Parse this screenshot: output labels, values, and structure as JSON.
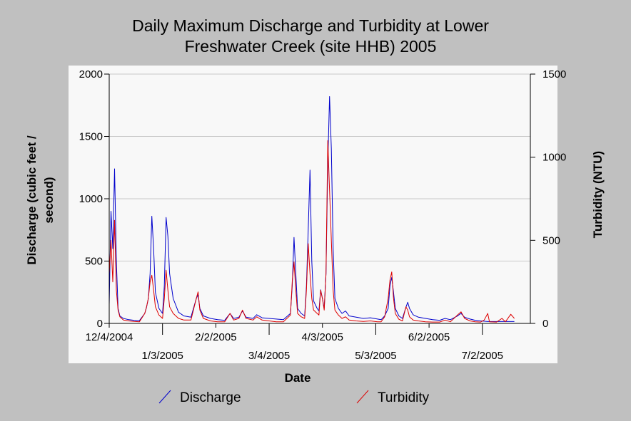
{
  "chart_data": {
    "type": "line",
    "title": [
      "Daily Maximum Discharge and Turbidity at Lower",
      "Freshwater Creek (site HHB) 2005"
    ],
    "xlabel": "Date",
    "ylabel_left": [
      "Discharge (cubic feet /",
      "second)"
    ],
    "ylabel_right": "Turbidity (NTU)",
    "x_range": [
      "2004-12-04",
      "2005-07-29"
    ],
    "x_ticks": [
      {
        "date": "2004-12-04",
        "label": "12/4/2004",
        "row": 1
      },
      {
        "date": "2005-01-03",
        "label": "1/3/2005",
        "row": 2
      },
      {
        "date": "2005-02-02",
        "label": "2/2/2005",
        "row": 1
      },
      {
        "date": "2005-03-04",
        "label": "3/4/2005",
        "row": 2
      },
      {
        "date": "2005-04-03",
        "label": "4/3/2005",
        "row": 1
      },
      {
        "date": "2005-05-03",
        "label": "5/3/2005",
        "row": 2
      },
      {
        "date": "2005-06-02",
        "label": "6/2/2005",
        "row": 1
      },
      {
        "date": "2005-07-02",
        "label": "7/2/2005",
        "row": 2
      }
    ],
    "ylim_left": [
      0,
      2000
    ],
    "yticks_left": [
      "0",
      "500",
      "1000",
      "1500",
      "2000"
    ],
    "ylim_right": [
      0,
      1500
    ],
    "yticks_right": [
      "0",
      "500",
      "1000",
      "1500"
    ],
    "grid": "horizontal",
    "legend_position": "bottom",
    "series": [
      {
        "name": "Discharge",
        "axis": "left",
        "color": "#0000cc",
        "points": [
          [
            "2004-12-04",
            150
          ],
          [
            "2004-12-05",
            900
          ],
          [
            "2004-12-06",
            600
          ],
          [
            "2004-12-07",
            1240
          ],
          [
            "2004-12-08",
            500
          ],
          [
            "2004-12-09",
            120
          ],
          [
            "2004-12-10",
            60
          ],
          [
            "2004-12-12",
            40
          ],
          [
            "2004-12-15",
            30
          ],
          [
            "2004-12-18",
            25
          ],
          [
            "2004-12-21",
            22
          ],
          [
            "2004-12-24",
            80
          ],
          [
            "2004-12-25",
            130
          ],
          [
            "2004-12-26",
            200
          ],
          [
            "2004-12-27",
            400
          ],
          [
            "2004-12-28",
            860
          ],
          [
            "2004-12-29",
            600
          ],
          [
            "2004-12-30",
            250
          ],
          [
            "2005-01-01",
            120
          ],
          [
            "2005-01-03",
            80
          ],
          [
            "2005-01-04",
            300
          ],
          [
            "2005-01-05",
            850
          ],
          [
            "2005-01-06",
            700
          ],
          [
            "2005-01-07",
            400
          ],
          [
            "2005-01-09",
            200
          ],
          [
            "2005-01-12",
            90
          ],
          [
            "2005-01-15",
            60
          ],
          [
            "2005-01-19",
            50
          ],
          [
            "2005-01-22",
            200
          ],
          [
            "2005-01-23",
            230
          ],
          [
            "2005-01-24",
            120
          ],
          [
            "2005-01-26",
            60
          ],
          [
            "2005-01-30",
            40
          ],
          [
            "2005-02-03",
            30
          ],
          [
            "2005-02-07",
            25
          ],
          [
            "2005-02-10",
            80
          ],
          [
            "2005-02-12",
            40
          ],
          [
            "2005-02-15",
            50
          ],
          [
            "2005-02-17",
            100
          ],
          [
            "2005-02-19",
            50
          ],
          [
            "2005-02-23",
            40
          ],
          [
            "2005-02-25",
            70
          ],
          [
            "2005-02-28",
            45
          ],
          [
            "2005-03-04",
            40
          ],
          [
            "2005-03-08",
            35
          ],
          [
            "2005-03-12",
            30
          ],
          [
            "2005-03-16",
            80
          ],
          [
            "2005-03-17",
            300
          ],
          [
            "2005-03-18",
            690
          ],
          [
            "2005-03-19",
            400
          ],
          [
            "2005-03-20",
            120
          ],
          [
            "2005-03-22",
            80
          ],
          [
            "2005-03-24",
            60
          ],
          [
            "2005-03-25",
            300
          ],
          [
            "2005-03-26",
            750
          ],
          [
            "2005-03-27",
            1230
          ],
          [
            "2005-03-28",
            500
          ],
          [
            "2005-03-29",
            180
          ],
          [
            "2005-03-31",
            120
          ],
          [
            "2005-04-01",
            100
          ],
          [
            "2005-04-02",
            270
          ],
          [
            "2005-04-03",
            200
          ],
          [
            "2005-04-04",
            120
          ],
          [
            "2005-04-05",
            400
          ],
          [
            "2005-04-06",
            1280
          ],
          [
            "2005-04-07",
            1820
          ],
          [
            "2005-04-08",
            1400
          ],
          [
            "2005-04-09",
            600
          ],
          [
            "2005-04-10",
            200
          ],
          [
            "2005-04-12",
            120
          ],
          [
            "2005-04-14",
            80
          ],
          [
            "2005-04-16",
            100
          ],
          [
            "2005-04-18",
            60
          ],
          [
            "2005-04-22",
            50
          ],
          [
            "2005-04-26",
            40
          ],
          [
            "2005-04-30",
            45
          ],
          [
            "2005-05-04",
            35
          ],
          [
            "2005-05-06",
            30
          ],
          [
            "2005-05-08",
            60
          ],
          [
            "2005-05-10",
            120
          ],
          [
            "2005-05-11",
            300
          ],
          [
            "2005-05-12",
            370
          ],
          [
            "2005-05-13",
            250
          ],
          [
            "2005-05-14",
            120
          ],
          [
            "2005-05-16",
            60
          ],
          [
            "2005-05-18",
            40
          ],
          [
            "2005-05-20",
            130
          ],
          [
            "2005-05-21",
            170
          ],
          [
            "2005-05-22",
            120
          ],
          [
            "2005-05-24",
            70
          ],
          [
            "2005-05-27",
            50
          ],
          [
            "2005-05-31",
            40
          ],
          [
            "2005-06-04",
            30
          ],
          [
            "2005-06-08",
            25
          ],
          [
            "2005-06-11",
            40
          ],
          [
            "2005-06-14",
            30
          ],
          [
            "2005-06-18",
            60
          ],
          [
            "2005-06-20",
            80
          ],
          [
            "2005-06-22",
            50
          ],
          [
            "2005-06-25",
            35
          ],
          [
            "2005-06-28",
            25
          ],
          [
            "2005-07-01",
            20
          ],
          [
            "2005-07-05",
            15
          ],
          [
            "2005-07-10",
            15
          ],
          [
            "2005-07-15",
            15
          ],
          [
            "2005-07-20",
            15
          ]
        ]
      },
      {
        "name": "Turbidity",
        "axis": "right",
        "color": "#dd0000",
        "points": [
          [
            "2004-12-04",
            300
          ],
          [
            "2004-12-05",
            500
          ],
          [
            "2004-12-06",
            250
          ],
          [
            "2004-12-07",
            620
          ],
          [
            "2004-12-08",
            200
          ],
          [
            "2004-12-09",
            80
          ],
          [
            "2004-12-10",
            40
          ],
          [
            "2004-12-12",
            20
          ],
          [
            "2004-12-15",
            15
          ],
          [
            "2004-12-18",
            12
          ],
          [
            "2004-12-21",
            10
          ],
          [
            "2004-12-24",
            60
          ],
          [
            "2004-12-25",
            100
          ],
          [
            "2004-12-26",
            150
          ],
          [
            "2004-12-27",
            250
          ],
          [
            "2004-12-28",
            290
          ],
          [
            "2004-12-29",
            200
          ],
          [
            "2004-12-30",
            100
          ],
          [
            "2005-01-01",
            50
          ],
          [
            "2005-01-03",
            30
          ],
          [
            "2005-01-04",
            150
          ],
          [
            "2005-01-05",
            320
          ],
          [
            "2005-01-06",
            200
          ],
          [
            "2005-01-07",
            100
          ],
          [
            "2005-01-09",
            60
          ],
          [
            "2005-01-12",
            30
          ],
          [
            "2005-01-15",
            20
          ],
          [
            "2005-01-19",
            20
          ],
          [
            "2005-01-22",
            150
          ],
          [
            "2005-01-23",
            190
          ],
          [
            "2005-01-24",
            80
          ],
          [
            "2005-01-26",
            30
          ],
          [
            "2005-01-30",
            15
          ],
          [
            "2005-02-03",
            10
          ],
          [
            "2005-02-07",
            10
          ],
          [
            "2005-02-10",
            60
          ],
          [
            "2005-02-12",
            20
          ],
          [
            "2005-02-15",
            30
          ],
          [
            "2005-02-17",
            80
          ],
          [
            "2005-02-19",
            30
          ],
          [
            "2005-02-23",
            20
          ],
          [
            "2005-02-25",
            40
          ],
          [
            "2005-02-28",
            20
          ],
          [
            "2005-03-04",
            15
          ],
          [
            "2005-03-08",
            10
          ],
          [
            "2005-03-12",
            10
          ],
          [
            "2005-03-16",
            50
          ],
          [
            "2005-03-17",
            250
          ],
          [
            "2005-03-18",
            370
          ],
          [
            "2005-03-19",
            200
          ],
          [
            "2005-03-20",
            60
          ],
          [
            "2005-03-22",
            40
          ],
          [
            "2005-03-24",
            30
          ],
          [
            "2005-03-25",
            200
          ],
          [
            "2005-03-26",
            480
          ],
          [
            "2005-03-27",
            300
          ],
          [
            "2005-03-28",
            150
          ],
          [
            "2005-03-29",
            80
          ],
          [
            "2005-03-31",
            60
          ],
          [
            "2005-04-01",
            50
          ],
          [
            "2005-04-02",
            200
          ],
          [
            "2005-04-03",
            150
          ],
          [
            "2005-04-04",
            80
          ],
          [
            "2005-04-05",
            300
          ],
          [
            "2005-04-06",
            1100
          ],
          [
            "2005-04-07",
            800
          ],
          [
            "2005-04-08",
            500
          ],
          [
            "2005-04-09",
            200
          ],
          [
            "2005-04-10",
            80
          ],
          [
            "2005-04-12",
            50
          ],
          [
            "2005-04-14",
            30
          ],
          [
            "2005-04-16",
            40
          ],
          [
            "2005-04-18",
            20
          ],
          [
            "2005-04-22",
            15
          ],
          [
            "2005-04-26",
            12
          ],
          [
            "2005-04-30",
            15
          ],
          [
            "2005-05-04",
            10
          ],
          [
            "2005-05-06",
            10
          ],
          [
            "2005-05-08",
            40
          ],
          [
            "2005-05-10",
            150
          ],
          [
            "2005-05-11",
            260
          ],
          [
            "2005-05-12",
            310
          ],
          [
            "2005-05-13",
            150
          ],
          [
            "2005-05-14",
            60
          ],
          [
            "2005-05-16",
            25
          ],
          [
            "2005-05-18",
            15
          ],
          [
            "2005-05-20",
            100
          ],
          [
            "2005-05-21",
            80
          ],
          [
            "2005-05-22",
            40
          ],
          [
            "2005-05-24",
            20
          ],
          [
            "2005-05-27",
            15
          ],
          [
            "2005-05-31",
            10
          ],
          [
            "2005-06-04",
            8
          ],
          [
            "2005-06-08",
            8
          ],
          [
            "2005-06-11",
            20
          ],
          [
            "2005-06-14",
            10
          ],
          [
            "2005-06-18",
            50
          ],
          [
            "2005-06-20",
            70
          ],
          [
            "2005-06-22",
            30
          ],
          [
            "2005-06-25",
            15
          ],
          [
            "2005-06-28",
            10
          ],
          [
            "2005-07-01",
            8
          ],
          [
            "2005-07-03",
            20
          ],
          [
            "2005-07-05",
            60
          ],
          [
            "2005-07-06",
            10
          ],
          [
            "2005-07-10",
            8
          ],
          [
            "2005-07-13",
            30
          ],
          [
            "2005-07-15",
            10
          ],
          [
            "2005-07-18",
            55
          ],
          [
            "2005-07-20",
            30
          ]
        ]
      }
    ]
  }
}
